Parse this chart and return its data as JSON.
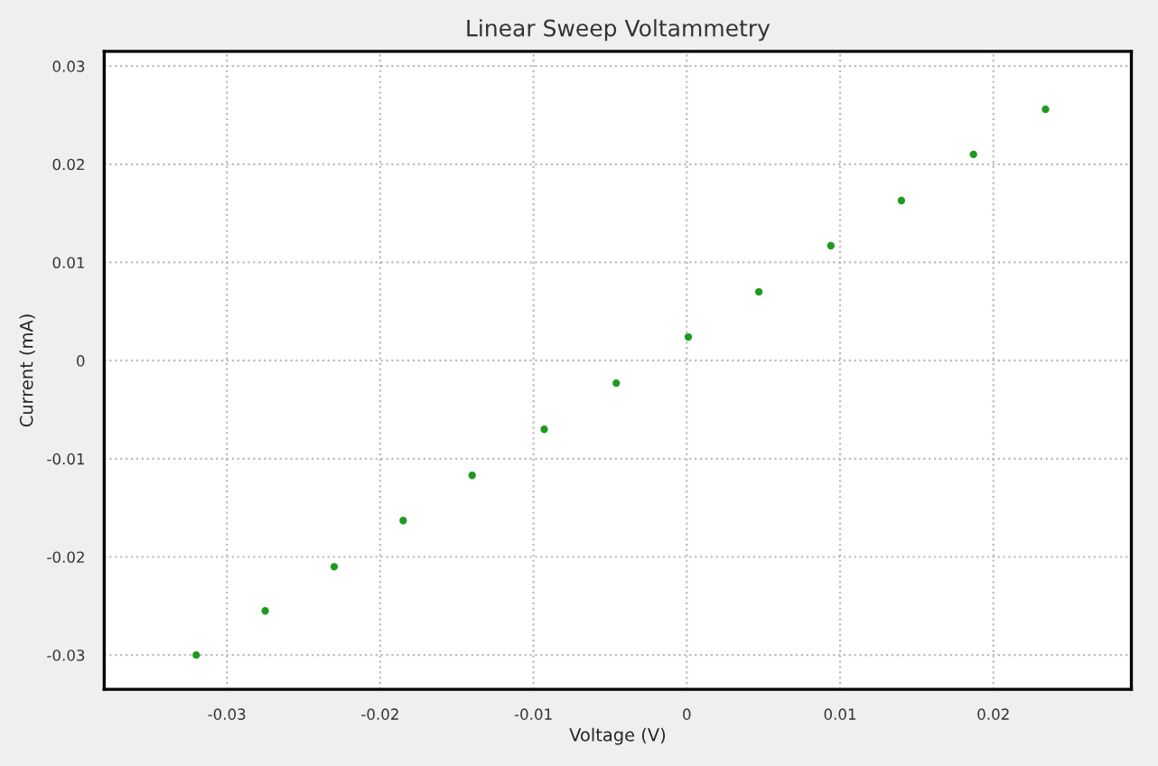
{
  "chart_data": {
    "type": "scatter",
    "title": "Linear Sweep Voltammetry",
    "xlabel": "Voltage (V)",
    "ylabel": "Current (mA)",
    "x": [
      -0.032,
      -0.0275,
      -0.023,
      -0.0185,
      -0.014,
      -0.0093,
      -0.0046,
      0.0001,
      0.0047,
      0.0094,
      0.014,
      0.0187,
      0.0234
    ],
    "series": [
      {
        "color": "#1f9a1f",
        "values": [
          -0.03,
          -0.0255,
          -0.021,
          -0.0163,
          -0.0117,
          -0.007,
          -0.0023,
          0.0024,
          0.007,
          0.0117,
          0.0163,
          0.021,
          0.0256
        ]
      }
    ],
    "xlim": [
      -0.038,
      0.029
    ],
    "ylim": [
      -0.0335,
      0.0315
    ],
    "xticks": [
      -0.03,
      -0.02,
      -0.01,
      0,
      0.01,
      0.02
    ],
    "yticks": [
      -0.03,
      -0.02,
      -0.01,
      0,
      0.01,
      0.02,
      0.03
    ],
    "grid": true,
    "marker": "circle",
    "legend": false
  }
}
